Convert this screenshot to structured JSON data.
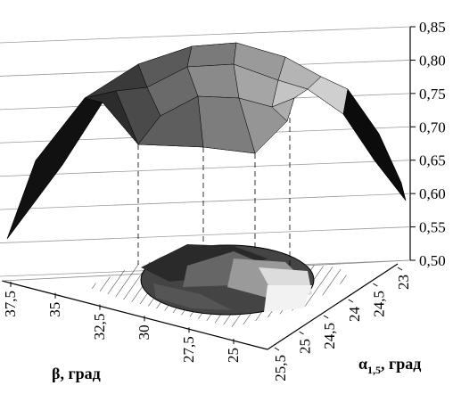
{
  "chart_data": {
    "type": "surface3d",
    "z_ticks": [
      "0,50",
      "0,55",
      "0,60",
      "0,65",
      "0,70",
      "0,75",
      "0,80",
      "0,85"
    ],
    "zlim": [
      0.5,
      0.85
    ],
    "beta_ticks": [
      "37,5",
      "35",
      "32,5",
      "30",
      "27,5",
      "25"
    ],
    "alpha_ticks": [
      "23",
      "24,5",
      "24",
      "24,5",
      "25",
      "25,5"
    ],
    "xlabel": "β, град",
    "ylabel_main": "α",
    "ylabel_sub": "1,5",
    "ylabel_rest": ", град",
    "grid": true,
    "surface_peak": 0.8,
    "contour_projection": true
  }
}
